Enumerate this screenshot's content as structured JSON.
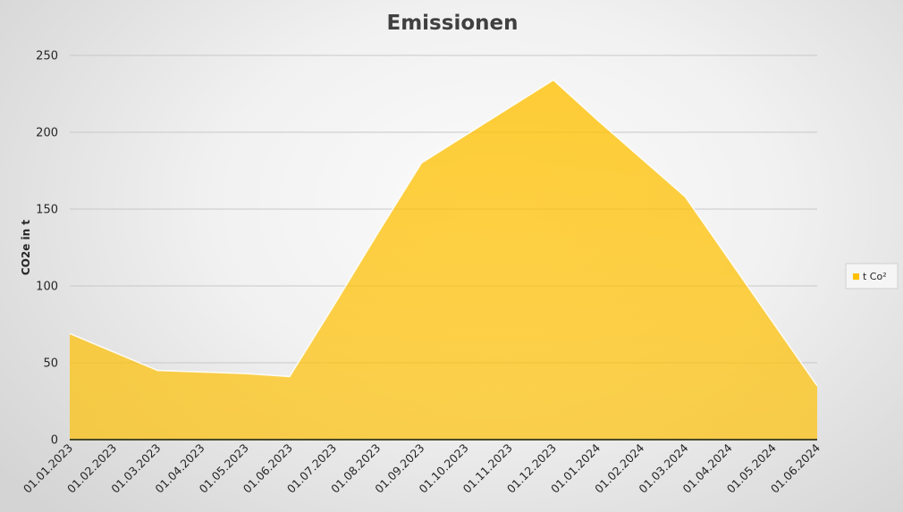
{
  "chart_data": {
    "type": "area",
    "title": "Emissionen",
    "xlabel": "",
    "ylabel": "CO2e in t",
    "ylim": [
      0,
      250
    ],
    "yticks": [
      0,
      50,
      100,
      150,
      200,
      250
    ],
    "grid": true,
    "legend_position": "right",
    "x": [
      "01.01.2023",
      "01.02.2023",
      "01.03.2023",
      "01.04.2023",
      "01.05.2023",
      "01.06.2023",
      "01.07.2023",
      "01.08.2023",
      "01.09.2023",
      "01.10.2023",
      "01.11.2023",
      "01.12.2023",
      "01.01.2024",
      "01.02.2024",
      "01.03.2024",
      "01.04.2024",
      "01.05.2024",
      "01.06.2024"
    ],
    "series": [
      {
        "name": "t Co²",
        "color": "#FFC000",
        "values": [
          69,
          57,
          45,
          44,
          43,
          41,
          87,
          134,
          180,
          198,
          216,
          234,
          208,
          183,
          158,
          117,
          76,
          35
        ]
      }
    ]
  }
}
